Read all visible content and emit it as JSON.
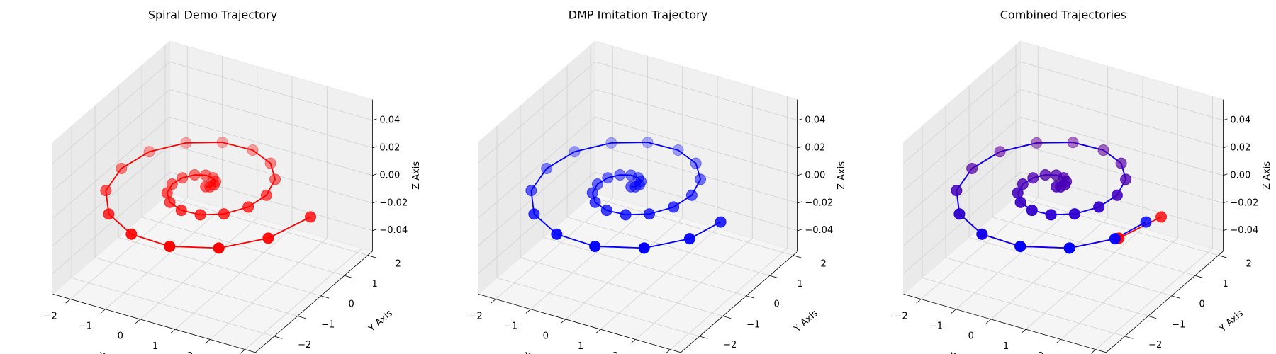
{
  "chart_data": [
    {
      "type": "line3d",
      "title": "Spiral Demo Trajectory",
      "xlabel": "X Axis",
      "ylabel": "Y Axis",
      "zlabel": "Z Axis",
      "xlim": [
        -2.5,
        3.3
      ],
      "ylim": [
        -2.8,
        2.2
      ],
      "zlim": [
        -0.055,
        0.055
      ],
      "xticks": [
        {
          "value": -2,
          "label": "−2"
        },
        {
          "value": -1,
          "label": "−1"
        },
        0,
        1,
        2,
        3
      ],
      "yticks": [
        {
          "value": -2,
          "label": "−2"
        },
        {
          "value": -1,
          "label": "−1"
        },
        0,
        1,
        2
      ],
      "zticks": [
        {
          "value": -0.04,
          "label": "−0.04"
        },
        {
          "value": -0.02,
          "label": "−0.02"
        },
        {
          "value": 0,
          "label": "0.00"
        },
        0.02,
        0.04
      ],
      "series": [
        {
          "color": "#ff0000",
          "x": [
            0,
            0.094,
            0.134,
            0.083,
            -0.067,
            -0.29,
            -0.532,
            -0.72,
            -0.785,
            -0.676,
            -0.384,
            0.062,
            0.581,
            1.069,
            1.417,
            1.515,
            1.307,
            0.811,
            0.101,
            -0.743,
            -1.512,
            -2.081,
            -2.265,
            -2.049,
            -1.406,
            -0.419,
            0.704,
            1.803,
            2.619,
            3.0
          ],
          "y": [
            0,
            0.043,
            0.158,
            0.299,
            0.408,
            0.428,
            0.32,
            0.078,
            -0.262,
            -0.641,
            -0.96,
            -1.136,
            -1.097,
            -0.816,
            -0.299,
            0.334,
            1.015,
            1.561,
            1.859,
            1.82,
            1.412,
            0.695,
            -0.225,
            -1.209,
            -2.046,
            -2.552,
            -2.596,
            -2.133,
            -1.239,
            0
          ],
          "z": [
            0,
            0,
            0,
            0,
            0,
            0,
            0,
            0,
            0,
            0,
            0,
            0,
            0,
            0,
            0,
            0,
            0,
            0,
            0,
            0,
            0,
            0,
            0,
            0,
            0,
            0,
            0,
            0,
            0,
            0
          ]
        }
      ]
    },
    {
      "type": "line3d",
      "title": "DMP Imitation Trajectory",
      "xlabel": "X Axis",
      "ylabel": "Y Axis",
      "zlabel": "Z Axis",
      "xlim": [
        -2.5,
        3.3
      ],
      "ylim": [
        -2.8,
        2.2
      ],
      "zlim": [
        -0.055,
        0.055
      ],
      "xticks": [
        {
          "value": -2,
          "label": "−2"
        },
        {
          "value": -1,
          "label": "−1"
        },
        0,
        1,
        2,
        3
      ],
      "yticks": [
        {
          "value": -2,
          "label": "−2"
        },
        {
          "value": -1,
          "label": "−1"
        },
        0,
        1,
        2
      ],
      "zticks": [
        {
          "value": -0.04,
          "label": "−0.04"
        },
        {
          "value": -0.02,
          "label": "−0.02"
        },
        {
          "value": 0,
          "label": "0.00"
        },
        0.02,
        0.04
      ],
      "series": [
        {
          "color": "#0000ff",
          "x": [
            0,
            0.094,
            0.134,
            0.083,
            -0.067,
            -0.29,
            -0.532,
            -0.72,
            -0.785,
            -0.676,
            -0.384,
            0.062,
            0.581,
            1.069,
            1.417,
            1.515,
            1.307,
            0.811,
            0.101,
            -0.743,
            -1.512,
            -2.081,
            -2.265,
            -2.049,
            -1.406,
            -0.419,
            0.704,
            1.803,
            2.55,
            2.8
          ],
          "y": [
            0,
            0.043,
            0.158,
            0.299,
            0.408,
            0.428,
            0.32,
            0.078,
            -0.262,
            -0.641,
            -0.96,
            -1.136,
            -1.097,
            -0.816,
            -0.299,
            0.334,
            1.015,
            1.561,
            1.859,
            1.82,
            1.412,
            0.695,
            -0.225,
            -1.209,
            -2.046,
            -2.552,
            -2.596,
            -2.133,
            -1.3,
            -0.35
          ],
          "z": [
            0,
            0,
            0,
            0,
            0,
            0,
            0,
            0,
            0,
            0,
            0,
            0,
            0,
            0,
            0,
            0,
            0,
            0,
            0,
            0,
            0,
            0,
            0,
            0,
            0,
            0,
            0,
            0,
            0,
            0
          ]
        }
      ]
    },
    {
      "type": "line3d",
      "title": "Combined Trajectories",
      "xlabel": "X Axis",
      "ylabel": "Y Axis",
      "zlabel": "Z Axis",
      "xlim": [
        -2.5,
        3.3
      ],
      "ylim": [
        -2.8,
        2.2
      ],
      "zlim": [
        -0.055,
        0.055
      ],
      "xticks": [
        {
          "value": -2,
          "label": "−2"
        },
        {
          "value": -1,
          "label": "−1"
        },
        0,
        1,
        2,
        3
      ],
      "yticks": [
        {
          "value": -2,
          "label": "−2"
        },
        {
          "value": -1,
          "label": "−1"
        },
        0,
        1,
        2
      ],
      "zticks": [
        {
          "value": -0.04,
          "label": "−0.04"
        },
        {
          "value": -0.02,
          "label": "−0.02"
        },
        {
          "value": 0,
          "label": "0.00"
        },
        0.02,
        0.04
      ],
      "series": [
        {
          "color": "#ff0000",
          "x": [
            0,
            0.094,
            0.134,
            0.083,
            -0.067,
            -0.29,
            -0.532,
            -0.72,
            -0.785,
            -0.676,
            -0.384,
            0.062,
            0.581,
            1.069,
            1.417,
            1.515,
            1.307,
            0.811,
            0.101,
            -0.743,
            -1.512,
            -2.081,
            -2.265,
            -2.049,
            -1.406,
            -0.419,
            0.704,
            1.803,
            2.619,
            3.0
          ],
          "y": [
            0,
            0.043,
            0.158,
            0.299,
            0.408,
            0.428,
            0.32,
            0.078,
            -0.262,
            -0.641,
            -0.96,
            -1.136,
            -1.097,
            -0.816,
            -0.299,
            0.334,
            1.015,
            1.561,
            1.859,
            1.82,
            1.412,
            0.695,
            -0.225,
            -1.209,
            -2.046,
            -2.552,
            -2.596,
            -2.133,
            -1.239,
            0
          ],
          "z": [
            0,
            0,
            0,
            0,
            0,
            0,
            0,
            0,
            0,
            0,
            0,
            0,
            0,
            0,
            0,
            0,
            0,
            0,
            0,
            0,
            0,
            0,
            0,
            0,
            0,
            0,
            0,
            0,
            0,
            0
          ]
        },
        {
          "color": "#0000ff",
          "x": [
            0,
            0.094,
            0.134,
            0.083,
            -0.067,
            -0.29,
            -0.532,
            -0.72,
            -0.785,
            -0.676,
            -0.384,
            0.062,
            0.581,
            1.069,
            1.417,
            1.515,
            1.307,
            0.811,
            0.101,
            -0.743,
            -1.512,
            -2.081,
            -2.265,
            -2.049,
            -1.406,
            -0.419,
            0.704,
            1.803,
            2.55,
            2.8
          ],
          "y": [
            0,
            0.043,
            0.158,
            0.299,
            0.408,
            0.428,
            0.32,
            0.078,
            -0.262,
            -0.641,
            -0.96,
            -1.136,
            -1.097,
            -0.816,
            -0.299,
            0.334,
            1.015,
            1.561,
            1.859,
            1.82,
            1.412,
            0.695,
            -0.225,
            -1.209,
            -2.046,
            -2.552,
            -2.596,
            -2.133,
            -1.3,
            -0.35
          ],
          "z": [
            0,
            0,
            0,
            0,
            0,
            0,
            0,
            0,
            0,
            0,
            0,
            0,
            0,
            0,
            0,
            0,
            0,
            0,
            0,
            0,
            0,
            0,
            0,
            0,
            0,
            0,
            0,
            0,
            0,
            0
          ]
        }
      ]
    }
  ]
}
